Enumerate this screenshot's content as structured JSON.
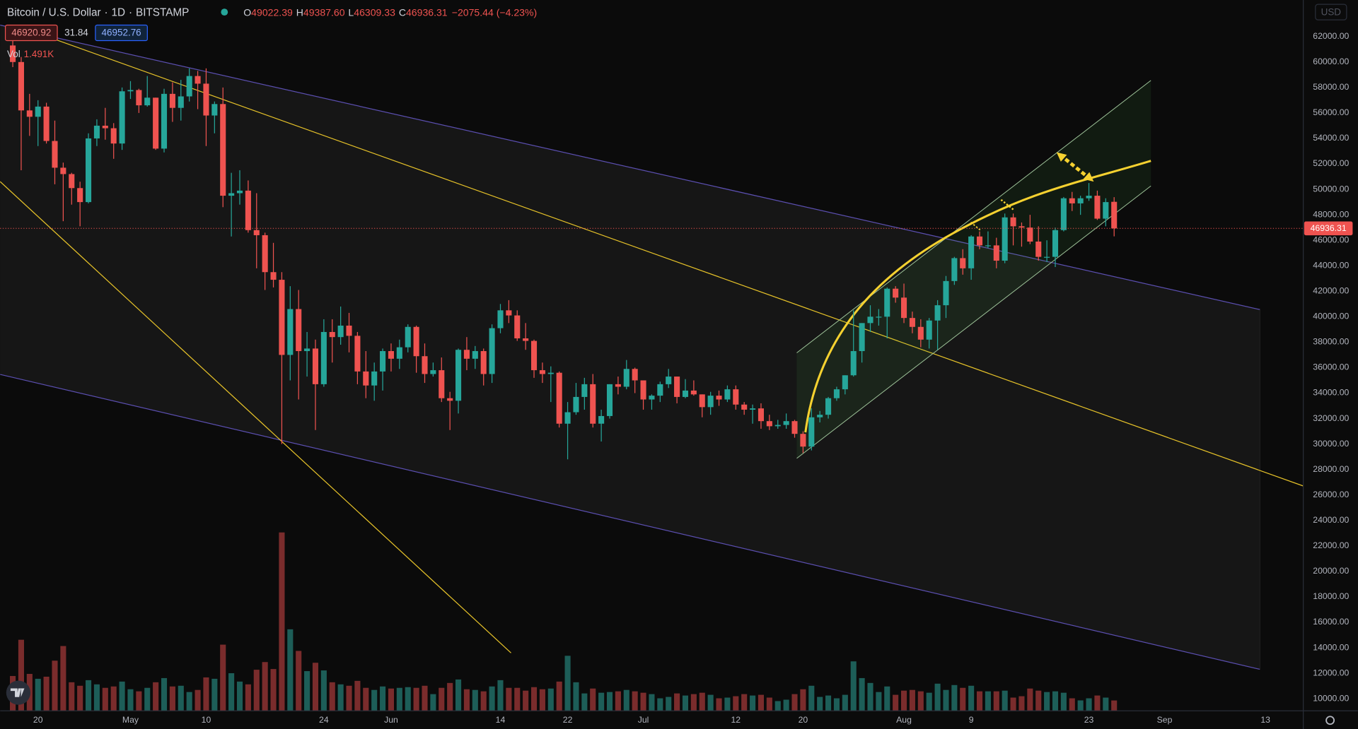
{
  "header": {
    "symbol": "Bitcoin / U.S. Dollar",
    "interval": "1D",
    "exchange": "BITSTAMP",
    "o_label": "O",
    "o": "49022.39",
    "h_label": "H",
    "h": "49387.60",
    "l_label": "L",
    "l": "46309.33",
    "c_label": "C",
    "c": "46936.31",
    "change": "−2075.44 (−4.23%)",
    "bid": "46920.92",
    "spread": "31.84",
    "ask": "46952.76",
    "vol_label": "Vol",
    "vol_value": "1.491K",
    "currency": "USD"
  },
  "chart_data": {
    "type": "candlestick",
    "up_color": "#26a69a",
    "down_color": "#ef5350",
    "up_volume_color": "#1d5e58",
    "down_volume_color": "#7a2c2c",
    "grid": false,
    "xlim": [
      -1.5,
      153.5
    ],
    "ylim": [
      9050,
      64870
    ],
    "volume_ylim": [
      0,
      102000
    ],
    "xticks": [
      {
        "value": 3,
        "label": "20"
      },
      {
        "value": 14,
        "label": "May"
      },
      {
        "value": 23,
        "label": "10"
      },
      {
        "value": 37,
        "label": "24"
      },
      {
        "value": 45,
        "label": "Jun"
      },
      {
        "value": 58,
        "label": "14"
      },
      {
        "value": 66,
        "label": "22"
      },
      {
        "value": 75,
        "label": "Jul"
      },
      {
        "value": 86,
        "label": "12"
      },
      {
        "value": 94,
        "label": "20"
      },
      {
        "value": 106,
        "label": "Aug"
      },
      {
        "value": 114,
        "label": "9"
      },
      {
        "value": 128,
        "label": "23"
      },
      {
        "value": 137,
        "label": "Sep"
      },
      {
        "value": 149,
        "label": "13"
      }
    ],
    "yticks": [
      {
        "value": 10000,
        "label": "10000.00"
      },
      {
        "value": 12000,
        "label": "12000.00"
      },
      {
        "value": 14000,
        "label": "14000.00"
      },
      {
        "value": 16000,
        "label": "16000.00"
      },
      {
        "value": 18000,
        "label": "18000.00"
      },
      {
        "value": 20000,
        "label": "20000.00"
      },
      {
        "value": 22000,
        "label": "22000.00"
      },
      {
        "value": 24000,
        "label": "24000.00"
      },
      {
        "value": 26000,
        "label": "26000.00"
      },
      {
        "value": 28000,
        "label": "28000.00"
      },
      {
        "value": 30000,
        "label": "30000.00"
      },
      {
        "value": 32000,
        "label": "32000.00"
      },
      {
        "value": 34000,
        "label": "34000.00"
      },
      {
        "value": 36000,
        "label": "36000.00"
      },
      {
        "value": 38000,
        "label": "38000.00"
      },
      {
        "value": 40000,
        "label": "40000.00"
      },
      {
        "value": 42000,
        "label": "42000.00"
      },
      {
        "value": 44000,
        "label": "44000.00"
      },
      {
        "value": 46000,
        "label": "46000.00"
      },
      {
        "value": 48000,
        "label": "48000.00"
      },
      {
        "value": 50000,
        "label": "50000.00"
      },
      {
        "value": 52000,
        "label": "52000.00"
      },
      {
        "value": 54000,
        "label": "54000.00"
      },
      {
        "value": 56000,
        "label": "56000.00"
      },
      {
        "value": 58000,
        "label": "58000.00"
      },
      {
        "value": 60000,
        "label": "60000.00"
      },
      {
        "value": 62000,
        "label": "62000.00"
      }
    ],
    "ohlc": [
      [
        61300,
        62500,
        59600,
        60000
      ],
      [
        60000,
        60400,
        51500,
        56200
      ],
      [
        56200,
        57500,
        54200,
        55700
      ],
      [
        55700,
        57000,
        53400,
        56500
      ],
      [
        56500,
        56800,
        53600,
        53800
      ],
      [
        53800,
        55400,
        50400,
        51700
      ],
      [
        51700,
        52100,
        47500,
        51200
      ],
      [
        51200,
        51300,
        48800,
        50100
      ],
      [
        50100,
        50600,
        47100,
        49000
      ],
      [
        49000,
        54400,
        48900,
        54000
      ],
      [
        54000,
        55500,
        53400,
        55000
      ],
      [
        55000,
        56400,
        53900,
        54800
      ],
      [
        54800,
        55200,
        52400,
        53600
      ],
      [
        53600,
        58000,
        53100,
        57700
      ],
      [
        57700,
        58500,
        57100,
        57800
      ],
      [
        57800,
        57900,
        56000,
        56600
      ],
      [
        56600,
        58900,
        56500,
        57200
      ],
      [
        57200,
        57200,
        53100,
        53200
      ],
      [
        53200,
        57900,
        52900,
        57500
      ],
      [
        57500,
        58400,
        55300,
        56400
      ],
      [
        56400,
        58600,
        55400,
        57300
      ],
      [
        57300,
        59500,
        56900,
        58900
      ],
      [
        58900,
        59300,
        56300,
        58300
      ],
      [
        58300,
        59500,
        53400,
        55800
      ],
      [
        55800,
        56900,
        54400,
        56700
      ],
      [
        56700,
        58000,
        48600,
        49500
      ],
      [
        49500,
        51300,
        46300,
        49700
      ],
      [
        49700,
        51500,
        48800,
        49900
      ],
      [
        49900,
        50700,
        46600,
        46800
      ],
      [
        46800,
        49700,
        43800,
        46400
      ],
      [
        46400,
        46600,
        42100,
        43500
      ],
      [
        43500,
        45800,
        42300,
        42900
      ],
      [
        42900,
        43500,
        30000,
        37000
      ],
      [
        37000,
        42400,
        35000,
        40600
      ],
      [
        40600,
        42100,
        33500,
        37300
      ],
      [
        37300,
        38800,
        35300,
        37500
      ],
      [
        37500,
        38200,
        31100,
        34700
      ],
      [
        34700,
        39800,
        34500,
        38800
      ],
      [
        38800,
        39800,
        36400,
        38400
      ],
      [
        38400,
        40800,
        37800,
        39300
      ],
      [
        39300,
        40300,
        37200,
        38500
      ],
      [
        38500,
        38800,
        34700,
        35700
      ],
      [
        35700,
        37300,
        33600,
        34600
      ],
      [
        34600,
        36400,
        33400,
        35700
      ],
      [
        35700,
        37500,
        34200,
        37300
      ],
      [
        37300,
        37900,
        35700,
        36700
      ],
      [
        36700,
        38200,
        35900,
        37600
      ],
      [
        37600,
        39400,
        37200,
        39200
      ],
      [
        39200,
        39300,
        35600,
        36900
      ],
      [
        36900,
        37900,
        34800,
        35500
      ],
      [
        35500,
        36400,
        35300,
        35800
      ],
      [
        35800,
        36800,
        33300,
        33600
      ],
      [
        33600,
        34100,
        31100,
        33400
      ],
      [
        33400,
        37500,
        32400,
        37400
      ],
      [
        37400,
        38400,
        35800,
        36700
      ],
      [
        36700,
        37700,
        35900,
        37300
      ],
      [
        37300,
        37500,
        34600,
        35500
      ],
      [
        35500,
        39400,
        34800,
        39100
      ],
      [
        39100,
        41000,
        38700,
        40500
      ],
      [
        40500,
        41300,
        39500,
        40100
      ],
      [
        40100,
        40500,
        38100,
        38300
      ],
      [
        38300,
        39500,
        37400,
        38100
      ],
      [
        38100,
        38200,
        35200,
        35800
      ],
      [
        35800,
        36400,
        34800,
        35500
      ],
      [
        35500,
        36100,
        33300,
        35600
      ],
      [
        35600,
        35700,
        31300,
        31600
      ],
      [
        31600,
        33300,
        28800,
        32500
      ],
      [
        32500,
        34800,
        32300,
        33700
      ],
      [
        33700,
        35200,
        32700,
        34700
      ],
      [
        34700,
        35500,
        31300,
        31600
      ],
      [
        31600,
        32700,
        30200,
        32200
      ],
      [
        32200,
        34700,
        32000,
        34700
      ],
      [
        34700,
        35300,
        33900,
        34500
      ],
      [
        34500,
        36600,
        34300,
        35900
      ],
      [
        35900,
        36000,
        34000,
        35000
      ],
      [
        35000,
        35000,
        32700,
        33500
      ],
      [
        33500,
        33900,
        32700,
        33800
      ],
      [
        33800,
        34900,
        33300,
        34700
      ],
      [
        34700,
        35900,
        34400,
        35300
      ],
      [
        35300,
        35300,
        33200,
        33700
      ],
      [
        33700,
        35100,
        33600,
        34200
      ],
      [
        34200,
        35000,
        33800,
        33900
      ],
      [
        33900,
        33900,
        32100,
        32900
      ],
      [
        32900,
        34100,
        32300,
        33800
      ],
      [
        33800,
        34200,
        33000,
        33500
      ],
      [
        33500,
        34600,
        33300,
        34300
      ],
      [
        34300,
        34600,
        32700,
        33100
      ],
      [
        33100,
        33300,
        32300,
        32700
      ],
      [
        32700,
        33100,
        31600,
        32800
      ],
      [
        32800,
        33200,
        31200,
        31800
      ],
      [
        31800,
        32300,
        31100,
        31400
      ],
      [
        31400,
        31900,
        31200,
        31500
      ],
      [
        31500,
        32400,
        31200,
        31800
      ],
      [
        31800,
        31900,
        30500,
        30800
      ],
      [
        30800,
        31000,
        29300,
        29800
      ],
      [
        29800,
        32800,
        29500,
        32100
      ],
      [
        32100,
        32600,
        31700,
        32300
      ],
      [
        32300,
        33700,
        32000,
        33600
      ],
      [
        33600,
        34500,
        33400,
        34300
      ],
      [
        34300,
        35400,
        33900,
        35400
      ],
      [
        35400,
        40500,
        35300,
        37300
      ],
      [
        37300,
        39500,
        36400,
        39500
      ],
      [
        39500,
        40900,
        38800,
        40000
      ],
      [
        40000,
        40600,
        39300,
        40000
      ],
      [
        40000,
        42300,
        38300,
        42200
      ],
      [
        42200,
        42400,
        41100,
        41500
      ],
      [
        41500,
        42600,
        39500,
        39900
      ],
      [
        39900,
        40400,
        38700,
        39200
      ],
      [
        39200,
        39800,
        37600,
        38200
      ],
      [
        38200,
        39900,
        37500,
        39700
      ],
      [
        39700,
        41300,
        37400,
        40900
      ],
      [
        40900,
        43200,
        39900,
        42800
      ],
      [
        42800,
        44700,
        42500,
        44600
      ],
      [
        44600,
        45300,
        43300,
        43800
      ],
      [
        43800,
        46400,
        42900,
        46300
      ],
      [
        46300,
        46700,
        45300,
        45600
      ],
      [
        45600,
        46700,
        45400,
        45600
      ],
      [
        45600,
        46200,
        43800,
        44400
      ],
      [
        44400,
        48100,
        44200,
        47800
      ],
      [
        47800,
        48100,
        45600,
        47100
      ],
      [
        47100,
        47400,
        45500,
        47000
      ],
      [
        47000,
        48000,
        45700,
        45900
      ],
      [
        45900,
        47100,
        44400,
        44700
      ],
      [
        44700,
        46000,
        44300,
        44700
      ],
      [
        44700,
        47000,
        43900,
        46800
      ],
      [
        46800,
        49400,
        46700,
        49300
      ],
      [
        49300,
        49800,
        48300,
        48900
      ],
      [
        48900,
        49500,
        48000,
        49300
      ],
      [
        49300,
        50500,
        49100,
        49500
      ],
      [
        49500,
        49900,
        47600,
        47700
      ],
      [
        47700,
        49300,
        47100,
        49000
      ],
      [
        49022.39,
        49387.6,
        46309.33,
        46936.31
      ]
    ],
    "volume": [
      5000,
      10200,
      5300,
      4600,
      4900,
      7200,
      9300,
      4100,
      3600,
      4400,
      3800,
      3300,
      3500,
      4200,
      3100,
      2800,
      3300,
      4100,
      4700,
      3500,
      3600,
      2700,
      3000,
      4800,
      4600,
      9500,
      5400,
      4200,
      3800,
      5900,
      7000,
      6000,
      25600,
      11700,
      8600,
      5700,
      6900,
      5800,
      4100,
      3800,
      3600,
      4300,
      3300,
      3000,
      3500,
      3200,
      3300,
      3400,
      3300,
      3600,
      2400,
      3300,
      4000,
      4500,
      3100,
      3000,
      2800,
      3500,
      4400,
      3300,
      3300,
      2900,
      3400,
      3100,
      3200,
      4200,
      7900,
      4100,
      2500,
      3200,
      2600,
      2700,
      2800,
      3000,
      2800,
      2600,
      2400,
      1800,
      2000,
      2500,
      2200,
      2400,
      2600,
      2300,
      1800,
      1900,
      2100,
      2400,
      2200,
      2300,
      1900,
      1400,
      1600,
      2400,
      3100,
      3600,
      2000,
      2200,
      1800,
      2300,
      7100,
      4700,
      4000,
      2700,
      3500,
      2300,
      2900,
      3000,
      2800,
      2600,
      3900,
      3000,
      3700,
      3300,
      3600,
      2800,
      2800,
      2800,
      2900,
      1900,
      2100,
      3200,
      2900,
      2700,
      2800,
      2600,
      1800,
      1500,
      1800,
      2200,
      1900,
      1491
    ]
  }
}
